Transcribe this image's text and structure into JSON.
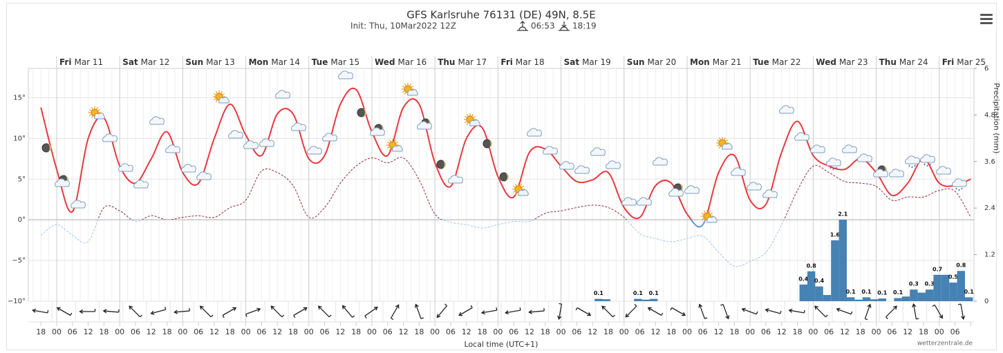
{
  "chart_data": {
    "type": "line",
    "title": "GFS Karlsruhe 76131 (DE) 49N, 8.5E",
    "subtitle": "Init: Thu, 10Mar2022 12Z",
    "sunrise": "06:53",
    "sunset": "18:19",
    "x_label": "Local time (UTC+1)",
    "y2_label": "Precipitation (mm)",
    "credit": "wetterzentrale.de",
    "categories": [
      "18",
      "00",
      "06",
      "12",
      "18",
      "00",
      "06",
      "12",
      "18",
      "00",
      "06",
      "12",
      "18",
      "00",
      "06",
      "12",
      "18",
      "00",
      "06",
      "12",
      "18",
      "00",
      "06",
      "12",
      "18",
      "00",
      "06",
      "12",
      "18",
      "00",
      "06",
      "12",
      "18",
      "00",
      "06",
      "12",
      "18",
      "00",
      "06",
      "12",
      "18",
      "00",
      "06",
      "12",
      "18",
      "00",
      "06",
      "12",
      "18",
      "00",
      "06",
      "12",
      "18",
      "00",
      "06",
      "12",
      "18",
      "00",
      "06",
      null
    ],
    "days": [
      {
        "weekday": "Fri",
        "date": "Mar 11"
      },
      {
        "weekday": "Sat",
        "date": "Mar 12"
      },
      {
        "weekday": "Sun",
        "date": "Mar 13"
      },
      {
        "weekday": "Mon",
        "date": "Mar 14"
      },
      {
        "weekday": "Tue",
        "date": "Mar 15"
      },
      {
        "weekday": "Wed",
        "date": "Mar 16"
      },
      {
        "weekday": "Thu",
        "date": "Mar 17"
      },
      {
        "weekday": "Fri",
        "date": "Mar 18"
      },
      {
        "weekday": "Sat",
        "date": "Mar 19"
      },
      {
        "weekday": "Sun",
        "date": "Mar 20"
      },
      {
        "weekday": "Mon",
        "date": "Mar 21"
      },
      {
        "weekday": "Tue",
        "date": "Mar 22"
      },
      {
        "weekday": "Wed",
        "date": "Mar 23"
      },
      {
        "weekday": "Thu",
        "date": "Mar 24"
      },
      {
        "weekday": "Fri",
        "date": "Mar 25"
      }
    ],
    "series": [
      {
        "color": "#e8383d",
        "color_below_zero": "#5b9bd5",
        "dashed": false,
        "values": [
          13.8,
          6.2,
          1.0,
          10,
          12.5,
          6.6,
          4.5,
          7.5,
          10.8,
          5.8,
          4.5,
          10,
          14.2,
          10.4,
          7.9,
          13,
          13,
          7.5,
          7.9,
          14.2,
          16,
          10.8,
          7.9,
          13.8,
          14.2,
          7,
          4.1,
          10,
          11.3,
          5.3,
          2.8,
          8.3,
          8.7,
          6.6,
          4.7,
          4.9,
          5.8,
          1.5,
          0.3,
          4.2,
          4.5,
          0.7,
          -0.6,
          5.8,
          7.9,
          2.4,
          1.9,
          8.3,
          12.1,
          7.9,
          6.6,
          6.2,
          7.5,
          5.8,
          3,
          4.5,
          7.5,
          4.5,
          4.2,
          5.0
        ]
      },
      {
        "color": "#8b2a3a",
        "color_below_zero": "#9ec3e6",
        "dashed": true,
        "values": [
          -1.9,
          -0.6,
          -1.9,
          -2.7,
          1.5,
          1.1,
          -0.2,
          0.5,
          0,
          0.3,
          0.5,
          0.3,
          1.5,
          2.4,
          6,
          5.8,
          4.2,
          0.3,
          1.5,
          4.5,
          6.6,
          7.6,
          7,
          7.6,
          4.9,
          0.7,
          -0.3,
          -0.6,
          -1,
          -0.6,
          -0.2,
          -0.2,
          0.8,
          1.1,
          1.5,
          1.8,
          1.5,
          0.3,
          -1.7,
          -2.3,
          -2.7,
          -2.3,
          -2,
          -4,
          -5.7,
          -5.1,
          -4,
          -0.6,
          3.6,
          6.6,
          5.8,
          4.7,
          4.5,
          4.1,
          2.4,
          2.8,
          2.8,
          3.6,
          3.5,
          0.3
        ]
      }
    ],
    "ylim": [
      -10,
      18.6
    ],
    "yticks": [
      {
        "value": 15,
        "label": "15°"
      },
      {
        "value": 10,
        "label": "10°"
      },
      {
        "value": 5,
        "label": "5°"
      },
      {
        "value": 0,
        "label": "0°"
      },
      {
        "value": -5,
        "label": "−5°"
      },
      {
        "value": -10,
        "label": "−10°"
      }
    ],
    "y2lim": [
      0,
      6
    ],
    "y2ticks": [
      6,
      4.8,
      3.6,
      2.4,
      1.2,
      0
    ],
    "grid": true,
    "precipitation": {
      "type": "bar",
      "axis": "y2",
      "color": "#4682b4",
      "values": [
        0,
        0,
        0,
        0,
        0,
        0,
        0,
        0,
        0,
        0,
        0,
        0,
        0,
        0,
        0,
        0,
        0,
        0,
        0,
        0,
        0,
        0,
        0,
        0,
        0,
        0,
        0,
        0,
        0,
        0,
        0,
        0,
        0,
        0,
        0,
        0,
        0,
        0,
        0,
        0,
        0,
        0,
        0,
        0,
        0,
        0,
        0,
        0,
        0,
        0,
        0,
        0,
        0,
        0,
        0,
        0,
        0,
        0,
        0,
        0,
        0,
        0,
        0,
        0,
        0,
        0,
        0,
        0,
        0,
        0,
        0.06,
        0.05,
        0,
        0,
        0,
        0.06,
        0.04,
        0.06,
        0,
        0,
        0,
        0,
        0,
        0,
        0,
        0,
        0,
        0,
        0,
        0,
        0,
        0,
        0,
        0,
        0,
        0,
        0.43,
        0.77,
        0.38,
        0.16,
        1.57,
        2.1,
        0.1,
        0.04,
        0.1,
        0.05,
        0.07,
        0,
        0.08,
        0.12,
        0.3,
        0.22,
        0.3,
        0.68,
        0.68,
        0.48,
        0.78,
        0.1
      ],
      "value_labels": [
        null,
        null,
        null,
        null,
        null,
        null,
        null,
        null,
        null,
        null,
        null,
        null,
        null,
        null,
        null,
        null,
        null,
        null,
        null,
        null,
        null,
        null,
        null,
        null,
        null,
        null,
        null,
        null,
        null,
        null,
        null,
        null,
        null,
        null,
        null,
        null,
        null,
        null,
        null,
        null,
        null,
        null,
        null,
        null,
        null,
        null,
        null,
        null,
        null,
        null,
        null,
        null,
        null,
        null,
        null,
        null,
        null,
        null,
        null,
        null,
        null,
        null,
        null,
        null,
        null,
        null,
        null,
        null,
        null,
        null,
        "0.1",
        null,
        null,
        null,
        null,
        "0.1",
        null,
        "0.1",
        null,
        null,
        null,
        null,
        null,
        null,
        null,
        null,
        null,
        null,
        null,
        null,
        null,
        null,
        null,
        null,
        null,
        null,
        "0.4",
        "0.8",
        "0.4",
        null,
        "1.6",
        "2.1",
        "0.1",
        null,
        "0.1",
        null,
        "0.1",
        null,
        "0.1",
        null,
        "0.3",
        null,
        "0.3",
        "0.7",
        null,
        "0.5",
        "0.8",
        "0.1"
      ]
    },
    "wind_from": [
      100,
      120,
      90,
      95,
      135,
      75,
      85,
      135,
      240,
      250,
      135,
      240,
      135,
      140,
      235,
      210,
      160,
      40,
      60,
      80,
      80,
      85,
      10,
      300,
      135,
      45,
      120,
      300,
      160,
      340,
      110,
      105,
      100,
      135,
      110,
      200,
      225,
      170,
      330,
      350
    ]
  }
}
